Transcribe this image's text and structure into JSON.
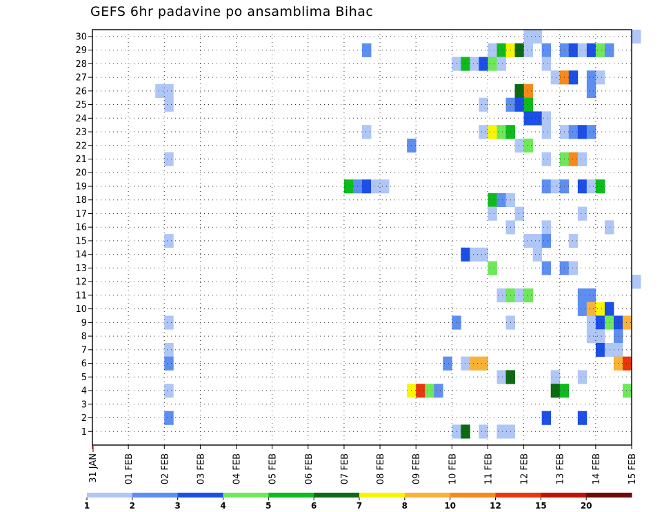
{
  "title": "GEFS 6hr padavine po ansamblima Bihac",
  "chart_data": {
    "type": "heatmap",
    "title": "GEFS 6hr padavine po ansamblima Bihac",
    "x_range": [
      "31 JAN",
      "15 FEB"
    ],
    "x_ticks": [
      "31 JAN",
      "01 FEB",
      "02 FEB",
      "03 FEB",
      "04 FEB",
      "05 FEB",
      "06 FEB",
      "07 FEB",
      "08 FEB",
      "09 FEB",
      "10 FEB",
      "11 FEB",
      "12 FEB",
      "13 FEB",
      "14 FEB",
      "15 FEB"
    ],
    "y_ticks": [
      1,
      2,
      3,
      4,
      5,
      6,
      7,
      8,
      9,
      10,
      11,
      12,
      13,
      14,
      15,
      16,
      17,
      18,
      19,
      20,
      21,
      22,
      23,
      24,
      25,
      26,
      27,
      28,
      29,
      30
    ],
    "y_range": [
      0.5,
      30.5
    ],
    "grid": true,
    "legend": {
      "placement": "bottom",
      "labels": [
        "1",
        "2",
        "3",
        "4",
        "5",
        "6",
        "7",
        "8",
        "10",
        "12",
        "15",
        "20"
      ],
      "colors": [
        "#afc6f6",
        "#5e8ef0",
        "#1d4fe6",
        "#6ee85a",
        "#0dbb1d",
        "#0b6a12",
        "#f9f500",
        "#f9b236",
        "#f6891a",
        "#e7370d",
        "#be1205",
        "#6e0a0a"
      ]
    },
    "cells": [
      {
        "m": 30,
        "d": 12.0,
        "c": 1
      },
      {
        "m": 30,
        "d": 12.25,
        "c": 1
      },
      {
        "m": 30,
        "d": 15.0,
        "c": 1
      },
      {
        "m": 29,
        "d": 7.5,
        "c": 2
      },
      {
        "m": 29,
        "d": 11.0,
        "c": 1
      },
      {
        "m": 29,
        "d": 11.25,
        "c": 5
      },
      {
        "m": 29,
        "d": 11.5,
        "c": 7
      },
      {
        "m": 29,
        "d": 11.75,
        "c": 6
      },
      {
        "m": 29,
        "d": 12.0,
        "c": 1
      },
      {
        "m": 29,
        "d": 12.5,
        "c": 2
      },
      {
        "m": 29,
        "d": 13.0,
        "c": 2
      },
      {
        "m": 29,
        "d": 13.25,
        "c": 3
      },
      {
        "m": 29,
        "d": 13.5,
        "c": 1
      },
      {
        "m": 29,
        "d": 13.75,
        "c": 3
      },
      {
        "m": 29,
        "d": 14.0,
        "c": 4
      },
      {
        "m": 29,
        "d": 14.25,
        "c": 2
      },
      {
        "m": 28,
        "d": 10.0,
        "c": 1
      },
      {
        "m": 28,
        "d": 10.25,
        "c": 5
      },
      {
        "m": 28,
        "d": 10.5,
        "c": 1
      },
      {
        "m": 28,
        "d": 10.75,
        "c": 3
      },
      {
        "m": 28,
        "d": 11.0,
        "c": 4
      },
      {
        "m": 28,
        "d": 11.25,
        "c": 1
      },
      {
        "m": 28,
        "d": 12.5,
        "c": 1
      },
      {
        "m": 27,
        "d": 12.75,
        "c": 1
      },
      {
        "m": 27,
        "d": 13.0,
        "c": 9
      },
      {
        "m": 27,
        "d": 13.25,
        "c": 3
      },
      {
        "m": 27,
        "d": 13.75,
        "c": 2
      },
      {
        "m": 27,
        "d": 14.0,
        "c": 1
      },
      {
        "m": 26,
        "d": 1.75,
        "c": 1
      },
      {
        "m": 26,
        "d": 2.0,
        "c": 1
      },
      {
        "m": 26,
        "d": 11.75,
        "c": 6
      },
      {
        "m": 26,
        "d": 12.0,
        "c": 9
      },
      {
        "m": 26,
        "d": 13.75,
        "c": 2
      },
      {
        "m": 25,
        "d": 2.0,
        "c": 1
      },
      {
        "m": 25,
        "d": 10.75,
        "c": 1
      },
      {
        "m": 25,
        "d": 11.5,
        "c": 2
      },
      {
        "m": 25,
        "d": 11.75,
        "c": 3
      },
      {
        "m": 25,
        "d": 12.0,
        "c": 5
      },
      {
        "m": 24,
        "d": 12.0,
        "c": 3
      },
      {
        "m": 24,
        "d": 12.25,
        "c": 3
      },
      {
        "m": 24,
        "d": 12.5,
        "c": 1
      },
      {
        "m": 23,
        "d": 7.5,
        "c": 1
      },
      {
        "m": 23,
        "d": 10.75,
        "c": 1
      },
      {
        "m": 23,
        "d": 11.0,
        "c": 7
      },
      {
        "m": 23,
        "d": 11.25,
        "c": 4
      },
      {
        "m": 23,
        "d": 11.5,
        "c": 5
      },
      {
        "m": 23,
        "d": 12.5,
        "c": 1
      },
      {
        "m": 23,
        "d": 13.0,
        "c": 1
      },
      {
        "m": 23,
        "d": 13.25,
        "c": 2
      },
      {
        "m": 23,
        "d": 13.5,
        "c": 3
      },
      {
        "m": 23,
        "d": 13.75,
        "c": 2
      },
      {
        "m": 22,
        "d": 8.75,
        "c": 2
      },
      {
        "m": 22,
        "d": 11.75,
        "c": 1
      },
      {
        "m": 22,
        "d": 12.0,
        "c": 4
      },
      {
        "m": 21,
        "d": 2.0,
        "c": 1
      },
      {
        "m": 21,
        "d": 12.5,
        "c": 1
      },
      {
        "m": 21,
        "d": 13.0,
        "c": 4
      },
      {
        "m": 21,
        "d": 13.25,
        "c": 9
      },
      {
        "m": 21,
        "d": 13.5,
        "c": 1
      },
      {
        "m": 19,
        "d": 7.0,
        "c": 5
      },
      {
        "m": 19,
        "d": 7.25,
        "c": 2
      },
      {
        "m": 19,
        "d": 7.5,
        "c": 3
      },
      {
        "m": 19,
        "d": 7.75,
        "c": 1
      },
      {
        "m": 19,
        "d": 8.0,
        "c": 1
      },
      {
        "m": 19,
        "d": 12.5,
        "c": 2
      },
      {
        "m": 19,
        "d": 12.75,
        "c": 1
      },
      {
        "m": 19,
        "d": 13.0,
        "c": 2
      },
      {
        "m": 19,
        "d": 13.5,
        "c": 3
      },
      {
        "m": 19,
        "d": 13.75,
        "c": 1
      },
      {
        "m": 19,
        "d": 14.0,
        "c": 5
      },
      {
        "m": 18,
        "d": 11.0,
        "c": 5
      },
      {
        "m": 18,
        "d": 11.25,
        "c": 2
      },
      {
        "m": 18,
        "d": 11.5,
        "c": 1
      },
      {
        "m": 17,
        "d": 11.0,
        "c": 1
      },
      {
        "m": 17,
        "d": 11.75,
        "c": 1
      },
      {
        "m": 17,
        "d": 13.5,
        "c": 1
      },
      {
        "m": 16,
        "d": 11.5,
        "c": 1
      },
      {
        "m": 16,
        "d": 12.5,
        "c": 1
      },
      {
        "m": 16,
        "d": 14.25,
        "c": 1
      },
      {
        "m": 15,
        "d": 2.0,
        "c": 1
      },
      {
        "m": 15,
        "d": 12.0,
        "c": 1
      },
      {
        "m": 15,
        "d": 12.25,
        "c": 1
      },
      {
        "m": 15,
        "d": 12.5,
        "c": 2
      },
      {
        "m": 15,
        "d": 13.25,
        "c": 1
      },
      {
        "m": 14,
        "d": 10.25,
        "c": 3
      },
      {
        "m": 14,
        "d": 10.5,
        "c": 1
      },
      {
        "m": 14,
        "d": 10.75,
        "c": 1
      },
      {
        "m": 14,
        "d": 12.25,
        "c": 1
      },
      {
        "m": 13,
        "d": 11.0,
        "c": 4
      },
      {
        "m": 13,
        "d": 12.5,
        "c": 2
      },
      {
        "m": 13,
        "d": 13.0,
        "c": 2
      },
      {
        "m": 13,
        "d": 13.25,
        "c": 1
      },
      {
        "m": 12,
        "d": 15.0,
        "c": 1
      },
      {
        "m": 11,
        "d": 11.25,
        "c": 1
      },
      {
        "m": 11,
        "d": 11.5,
        "c": 4
      },
      {
        "m": 11,
        "d": 11.75,
        "c": 1
      },
      {
        "m": 11,
        "d": 12.0,
        "c": 4
      },
      {
        "m": 11,
        "d": 13.5,
        "c": 2
      },
      {
        "m": 11,
        "d": 13.75,
        "c": 2
      },
      {
        "m": 10,
        "d": 13.5,
        "c": 2
      },
      {
        "m": 10,
        "d": 13.75,
        "c": 8
      },
      {
        "m": 10,
        "d": 14.0,
        "c": 7
      },
      {
        "m": 10,
        "d": 14.25,
        "c": 3
      },
      {
        "m": 9,
        "d": 2.0,
        "c": 1
      },
      {
        "m": 9,
        "d": 10.0,
        "c": 2
      },
      {
        "m": 9,
        "d": 11.5,
        "c": 1
      },
      {
        "m": 9,
        "d": 13.75,
        "c": 1
      },
      {
        "m": 9,
        "d": 14.0,
        "c": 3
      },
      {
        "m": 9,
        "d": 14.25,
        "c": 4
      },
      {
        "m": 9,
        "d": 14.5,
        "c": 3
      },
      {
        "m": 9,
        "d": 14.75,
        "c": 8
      },
      {
        "m": 8,
        "d": 13.75,
        "c": 1
      },
      {
        "m": 8,
        "d": 14.0,
        "c": 1
      },
      {
        "m": 8,
        "d": 14.5,
        "c": 2
      },
      {
        "m": 7,
        "d": 2.0,
        "c": 1
      },
      {
        "m": 7,
        "d": 14.0,
        "c": 3
      },
      {
        "m": 7,
        "d": 14.25,
        "c": 1
      },
      {
        "m": 7,
        "d": 14.5,
        "c": 1
      },
      {
        "m": 6,
        "d": 2.0,
        "c": 2
      },
      {
        "m": 6,
        "d": 9.75,
        "c": 2
      },
      {
        "m": 6,
        "d": 10.25,
        "c": 1
      },
      {
        "m": 6,
        "d": 10.5,
        "c": 8
      },
      {
        "m": 6,
        "d": 10.75,
        "c": 8
      },
      {
        "m": 6,
        "d": 14.5,
        "c": 8
      },
      {
        "m": 6,
        "d": 14.75,
        "c": 10
      },
      {
        "m": 5,
        "d": 11.25,
        "c": 1
      },
      {
        "m": 5,
        "d": 11.5,
        "c": 6
      },
      {
        "m": 5,
        "d": 12.75,
        "c": 1
      },
      {
        "m": 5,
        "d": 13.5,
        "c": 1
      },
      {
        "m": 4,
        "d": 2.0,
        "c": 1
      },
      {
        "m": 4,
        "d": 8.75,
        "c": 7
      },
      {
        "m": 4,
        "d": 9.0,
        "c": 10
      },
      {
        "m": 4,
        "d": 9.25,
        "c": 4
      },
      {
        "m": 4,
        "d": 9.5,
        "c": 2
      },
      {
        "m": 4,
        "d": 12.75,
        "c": 6
      },
      {
        "m": 4,
        "d": 13.0,
        "c": 5
      },
      {
        "m": 4,
        "d": 14.75,
        "c": 4
      },
      {
        "m": 2,
        "d": 2.0,
        "c": 2
      },
      {
        "m": 2,
        "d": 12.5,
        "c": 3
      },
      {
        "m": 2,
        "d": 13.5,
        "c": 3
      },
      {
        "m": 1,
        "d": 10.0,
        "c": 1
      },
      {
        "m": 1,
        "d": 10.25,
        "c": 6
      },
      {
        "m": 1,
        "d": 10.75,
        "c": 1
      },
      {
        "m": 1,
        "d": 11.25,
        "c": 1
      },
      {
        "m": 1,
        "d": 11.5,
        "c": 1
      }
    ]
  }
}
